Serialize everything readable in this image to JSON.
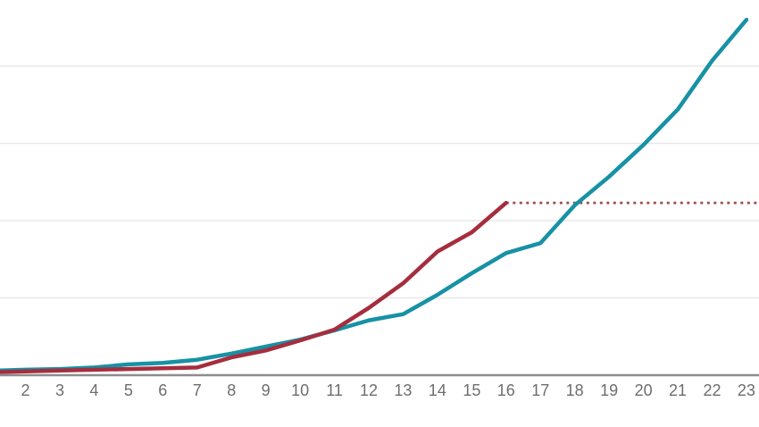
{
  "chart_data": {
    "type": "line",
    "title": "",
    "legend": "none",
    "grid": "horizontal",
    "x_tick_labels": [
      "2",
      "3",
      "4",
      "5",
      "6",
      "7",
      "8",
      "9",
      "10",
      "11",
      "12",
      "13",
      "14",
      "15",
      "16",
      "17",
      "18",
      "19",
      "20",
      "21",
      "22",
      "23"
    ],
    "x_values": [
      2,
      3,
      4,
      5,
      6,
      7,
      8,
      9,
      10,
      11,
      12,
      13,
      14,
      15,
      16,
      17,
      18,
      19,
      20,
      21,
      22,
      23
    ],
    "y_axis": {
      "tick_labels_visible": false,
      "gridline_values": [
        1,
        2,
        3,
        4
      ],
      "ylim": [
        0,
        4.86
      ]
    },
    "series": [
      {
        "name": "teal",
        "color": "#1791a5",
        "left_edge_value": 0.06,
        "values": [
          0.07,
          0.08,
          0.1,
          0.14,
          0.16,
          0.2,
          0.28,
          0.37,
          0.46,
          0.58,
          0.71,
          0.79,
          1.04,
          1.32,
          1.58,
          1.71,
          2.2,
          2.57,
          2.98,
          3.44,
          4.07,
          4.6
        ]
      },
      {
        "name": "red",
        "color": "#a52e3e",
        "left_edge_value": 0.04,
        "values": [
          0.05,
          0.06,
          0.07,
          0.08,
          0.09,
          0.1,
          0.23,
          0.32,
          0.45,
          0.59,
          0.87,
          1.19,
          1.6,
          1.85,
          2.23,
          null,
          null,
          null,
          null,
          null,
          null,
          null
        ],
        "projection": {
          "style": "dotted",
          "from_x": 16,
          "to_right_edge": true,
          "value": 2.23,
          "color": "#9c4f4f"
        }
      }
    ]
  },
  "colors": {
    "background": "#ffffff",
    "gridline": "#e8e8e8",
    "axis_line": "#8c8c8c",
    "tick_text": "#6e6e6e"
  }
}
